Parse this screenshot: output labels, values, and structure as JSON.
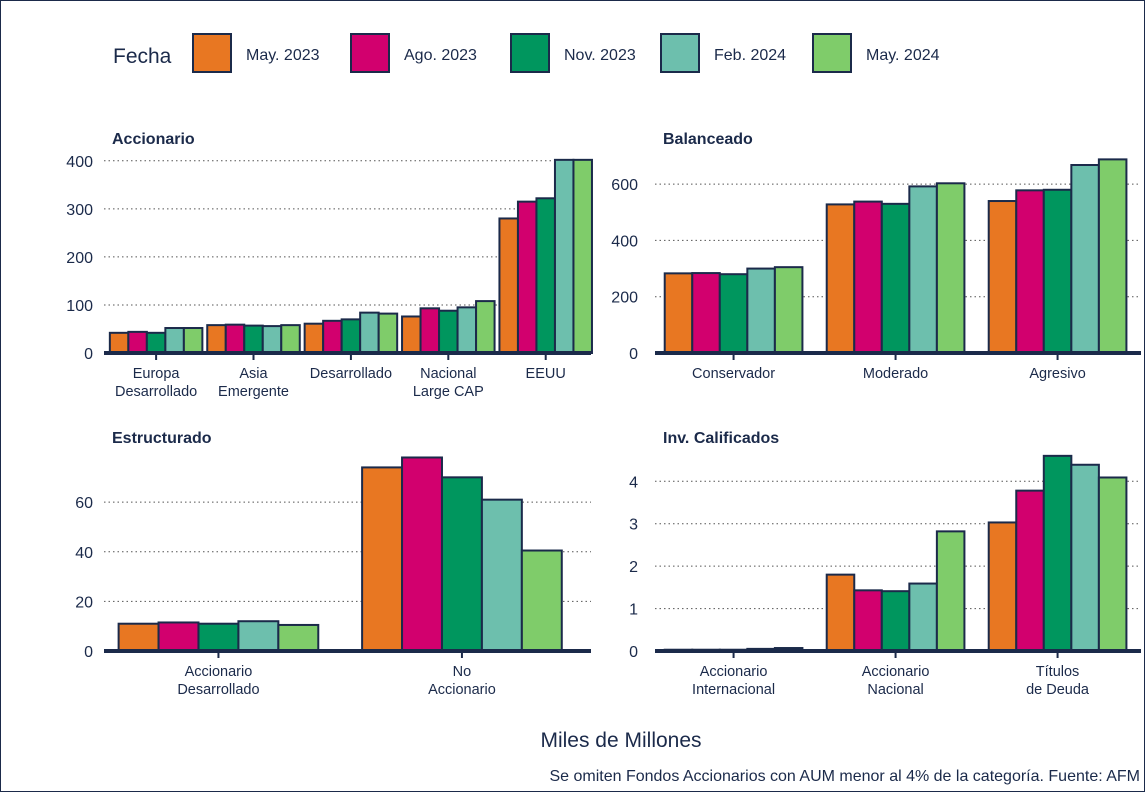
{
  "legend": {
    "title": "Fecha",
    "entries": [
      {
        "label": "May. 2023",
        "color": "#e87722"
      },
      {
        "label": "Ago. 2023",
        "color": "#d2006e"
      },
      {
        "label": "Nov. 2023",
        "color": "#00965e"
      },
      {
        "label": "Feb. 2024",
        "color": "#6dbfad"
      },
      {
        "label": "May. 2024",
        "color": "#7fcc6a"
      }
    ]
  },
  "footer": {
    "xlabel": "Miles de Millones",
    "caption": "Se omiten Fondos Accionarios con AUM menor al 4% de la categoría. Fuente: AFM"
  },
  "colors": {
    "bar_outline": "#1b2a4a",
    "grid": "#555555",
    "text": "#1b2a4a"
  },
  "chart_data": [
    {
      "type": "bar",
      "title": "Accionario",
      "xlabel": "",
      "ylabel": "",
      "ylim": [
        0,
        410
      ],
      "yticks": [
        0,
        100,
        200,
        300,
        400
      ],
      "grid": true,
      "categories": [
        [
          "Europa",
          "Desarrollado"
        ],
        [
          "Asia",
          "Emergente"
        ],
        [
          "Desarrollado"
        ],
        [
          "Nacional",
          "Large CAP"
        ],
        [
          "EEUU"
        ]
      ],
      "series": [
        {
          "name": "May. 2023",
          "values": [
            42,
            58,
            61,
            76,
            280
          ]
        },
        {
          "name": "Ago. 2023",
          "values": [
            44,
            59,
            67,
            93,
            315
          ]
        },
        {
          "name": "Nov. 2023",
          "values": [
            42,
            57,
            70,
            88,
            322
          ]
        },
        {
          "name": "Feb. 2024",
          "values": [
            52,
            56,
            84,
            95,
            402
          ]
        },
        {
          "name": "May. 2024",
          "values": [
            52,
            58,
            82,
            108,
            402
          ]
        }
      ]
    },
    {
      "type": "bar",
      "title": "Balanceado",
      "xlabel": "",
      "ylabel": "",
      "ylim": [
        0,
        700
      ],
      "yticks": [
        0,
        200,
        400,
        600
      ],
      "grid": true,
      "categories": [
        [
          "Conservador"
        ],
        [
          "Moderado"
        ],
        [
          "Agresivo"
        ]
      ],
      "series": [
        {
          "name": "May. 2023",
          "values": [
            283,
            528,
            540
          ]
        },
        {
          "name": "Ago. 2023",
          "values": [
            284,
            538,
            578
          ]
        },
        {
          "name": "Nov. 2023",
          "values": [
            280,
            530,
            580
          ]
        },
        {
          "name": "Feb. 2024",
          "values": [
            300,
            592,
            668
          ]
        },
        {
          "name": "May. 2024",
          "values": [
            305,
            603,
            688
          ]
        }
      ]
    },
    {
      "type": "bar",
      "title": "Estructurado",
      "xlabel": "",
      "ylabel": "",
      "ylim": [
        0,
        79
      ],
      "yticks": [
        0,
        20,
        40,
        60
      ],
      "grid": true,
      "categories": [
        [
          "Accionario",
          "Desarrollado"
        ],
        [
          "No",
          "Accionario"
        ]
      ],
      "series": [
        {
          "name": "May. 2023",
          "values": [
            11,
            74
          ]
        },
        {
          "name": "Ago. 2023",
          "values": [
            11.5,
            78
          ]
        },
        {
          "name": "Nov. 2023",
          "values": [
            11,
            70
          ]
        },
        {
          "name": "Feb. 2024",
          "values": [
            12,
            61
          ]
        },
        {
          "name": "May. 2024",
          "values": [
            10.5,
            40.5
          ]
        }
      ]
    },
    {
      "type": "bar",
      "title": "Inv. Calificados",
      "xlabel": "",
      "ylabel": "",
      "ylim": [
        0,
        4.62
      ],
      "yticks": [
        0,
        1,
        2,
        3,
        4
      ],
      "grid": true,
      "categories": [
        [
          "Accionario",
          "Internacional"
        ],
        [
          "Accionario",
          "Nacional"
        ],
        [
          "Títulos",
          "de Deuda"
        ]
      ],
      "series": [
        {
          "name": "May. 2023",
          "values": [
            0.03,
            1.8,
            3.03
          ]
        },
        {
          "name": "Ago. 2023",
          "values": [
            0.03,
            1.43,
            3.78
          ]
        },
        {
          "name": "Nov. 2023",
          "values": [
            0.03,
            1.41,
            4.6
          ]
        },
        {
          "name": "Feb. 2024",
          "values": [
            0.05,
            1.59,
            4.39
          ]
        },
        {
          "name": "May. 2024",
          "values": [
            0.07,
            2.82,
            4.09
          ]
        }
      ]
    }
  ]
}
